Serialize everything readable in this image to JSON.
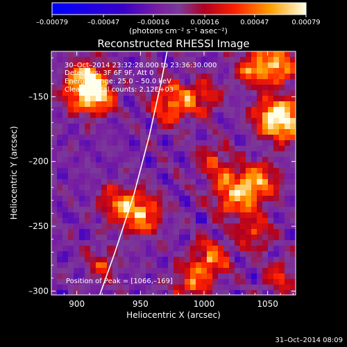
{
  "chart_data": {
    "type": "heatmap",
    "title": "Reconstructed RHESSI Image",
    "xlabel": "Heliocentric X (arcsec)",
    "ylabel": "Heliocentric Y (arcsec)",
    "xlim": [
      880,
      1072
    ],
    "ylim": [
      -303,
      -115
    ],
    "x_ticks": [
      900,
      950,
      1000,
      1050
    ],
    "y_ticks": [
      -150,
      -200,
      -250,
      -300
    ],
    "x_tick_labels": [
      "900",
      "950",
      "1000",
      "1050"
    ],
    "y_tick_labels": [
      "–150",
      "–200",
      "–250",
      "–300"
    ],
    "colorbar": {
      "range": [
        -0.00079,
        0.00079
      ],
      "ticks": [
        -0.00079,
        -0.00047,
        -0.00016,
        0.00016,
        0.00047,
        0.00079
      ],
      "tick_labels": [
        "–0.00079",
        "–0.00047",
        "–0.00016",
        "0.00016",
        "0.00047",
        "0.00079"
      ],
      "unit_label": "(photons cm⁻² s⁻¹ asec⁻²)"
    },
    "annotations": [
      "30–Oct–2014 23:32:28.000 to 23:36:30.000",
      "Detectors: 3F 6F 9F, Att 0",
      "Energy Range: 25.0 – 50.0 keV",
      "Clean    Total counts: 2.12E+03"
    ],
    "peak_label": "Position of Peak = [1066,–169]",
    "peak": [
      1066,
      -169
    ],
    "limb_curve": [
      [
        918,
        -303
      ],
      [
        930,
        -270
      ],
      [
        945,
        -225
      ],
      [
        957,
        -180
      ],
      [
        966,
        -140
      ],
      [
        971,
        -115
      ]
    ],
    "sources": [
      {
        "x": 905,
        "y": -145,
        "strength": 0.85,
        "radius": 11
      },
      {
        "x": 918,
        "y": -150,
        "strength": 0.7,
        "radius": 9
      },
      {
        "x": 910,
        "y": -133,
        "strength": 0.6,
        "radius": 8
      },
      {
        "x": 975,
        "y": -155,
        "strength": 0.75,
        "radius": 11
      },
      {
        "x": 1000,
        "y": -150,
        "strength": 0.55,
        "radius": 9
      },
      {
        "x": 1055,
        "y": -125,
        "strength": 0.9,
        "radius": 11
      },
      {
        "x": 1066,
        "y": -169,
        "strength": 1.0,
        "radius": 11
      },
      {
        "x": 1050,
        "y": -165,
        "strength": 0.7,
        "radius": 9
      },
      {
        "x": 1035,
        "y": -130,
        "strength": 0.55,
        "radius": 8
      },
      {
        "x": 950,
        "y": -240,
        "strength": 0.85,
        "radius": 11
      },
      {
        "x": 930,
        "y": -232,
        "strength": 0.6,
        "radius": 9
      },
      {
        "x": 1025,
        "y": -225,
        "strength": 0.85,
        "radius": 12
      },
      {
        "x": 1045,
        "y": -215,
        "strength": 0.65,
        "radius": 10
      },
      {
        "x": 1008,
        "y": -200,
        "strength": 0.5,
        "radius": 9
      },
      {
        "x": 1005,
        "y": -275,
        "strength": 0.7,
        "radius": 10
      },
      {
        "x": 1040,
        "y": -255,
        "strength": 0.55,
        "radius": 9
      },
      {
        "x": 920,
        "y": -280,
        "strength": 0.45,
        "radius": 9
      },
      {
        "x": 990,
        "y": -295,
        "strength": 0.6,
        "radius": 10
      },
      {
        "x": 1060,
        "y": -290,
        "strength": 0.5,
        "radius": 9
      }
    ]
  },
  "footer": {
    "timestamp": "31–Oct–2014 08:09"
  }
}
